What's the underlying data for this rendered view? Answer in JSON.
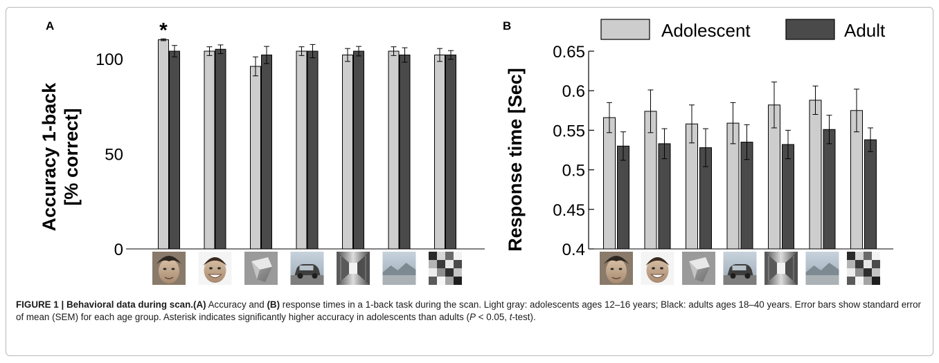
{
  "colors": {
    "adolescent": "#cdcdcd",
    "adult": "#4a4a4a",
    "rule": "#b8b8b8"
  },
  "legend": {
    "adolescent": "Adolescent",
    "adult": "Adult"
  },
  "chart_data": [
    {
      "panel": "A",
      "type": "bar",
      "ylabel_line1": "Accuracy 1-back",
      "ylabel_line2": "[% correct]",
      "ylim": [
        0,
        100
      ],
      "yticks": [
        0,
        50,
        100
      ],
      "category_icons": [
        "adolescent-face-icon",
        "child-face-icon",
        "abstract-object-icon",
        "car-icon",
        "corridor-icon",
        "landscape-icon",
        "scrambled-image-icon"
      ],
      "series": [
        {
          "name": "Adolescent",
          "values": [
            110,
            104,
            96,
            104,
            102,
            104,
            102
          ],
          "errors": [
            0.5,
            2.3,
            5,
            2.3,
            3.4,
            2.3,
            3.4
          ]
        },
        {
          "name": "Adult",
          "values": [
            104,
            105,
            102,
            104,
            104,
            102,
            102
          ],
          "errors": [
            3,
            2.3,
            4.5,
            3.5,
            2.5,
            3.8,
            2.3
          ]
        }
      ],
      "annotation": {
        "text": "*",
        "category_index": 0,
        "series_index": 0
      }
    },
    {
      "panel": "B",
      "type": "bar",
      "ylabel": "Response time [Sec]",
      "ylim": [
        0.4,
        0.65
      ],
      "yticks": [
        0.4,
        0.45,
        0.5,
        0.55,
        0.6,
        0.65
      ],
      "ytick_labels": [
        "0.4",
        "0.45",
        "0.5",
        "0.55",
        "0.6",
        "0.65"
      ],
      "category_icons": [
        "adolescent-face-icon",
        "child-face-icon",
        "abstract-object-icon",
        "car-icon",
        "corridor-icon",
        "landscape-icon",
        "scrambled-image-icon"
      ],
      "series": [
        {
          "name": "Adolescent",
          "values": [
            0.566,
            0.574,
            0.558,
            0.559,
            0.582,
            0.588,
            0.575
          ],
          "errors": [
            0.019,
            0.027,
            0.024,
            0.026,
            0.029,
            0.018,
            0.027
          ]
        },
        {
          "name": "Adult",
          "values": [
            0.53,
            0.533,
            0.528,
            0.535,
            0.532,
            0.551,
            0.538
          ],
          "errors": [
            0.018,
            0.019,
            0.024,
            0.022,
            0.018,
            0.018,
            0.015
          ]
        }
      ],
      "legend_position": "top"
    }
  ],
  "caption": {
    "lead": "FIGURE 1 | Behavioral data during scan.",
    "a_label": "(A)",
    "t1": " Accuracy and ",
    "b_label": "(B)",
    "t2": " response times in a 1-back task during the scan. Light gray: adolescents ages 12–16 years; Black: adults ages 18–40 years. Error bars show standard error of mean (SEM) for each age group. Asterisk indicates significantly higher accuracy in adolescents than adults (",
    "p_italic": "P",
    "t3": " < 0.05, ",
    "t_italic": "t",
    "t4": "-test)."
  }
}
